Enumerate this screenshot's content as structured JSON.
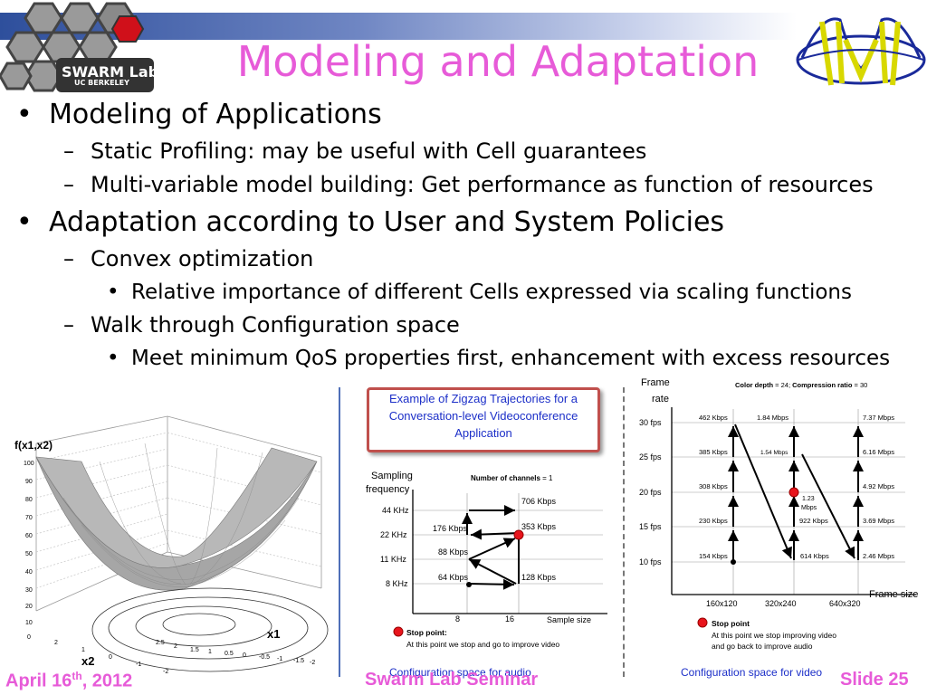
{
  "slide": {
    "title": "Modeling and Adaptation",
    "logo": {
      "line1": "SWARM Lab",
      "line2": "UC BERKELEY"
    },
    "bullets": [
      {
        "level": 1,
        "marker": "•",
        "text": "Modeling of Applications"
      },
      {
        "level": 2,
        "marker": "–",
        "text": "Static Profiling: may be useful with Cell guarantees"
      },
      {
        "level": 2,
        "marker": "–",
        "text": "Multi-variable model building: Get performance as function of resources"
      },
      {
        "level": 1,
        "marker": "•",
        "text": "Adaptation according to User and System Policies"
      },
      {
        "level": 2,
        "marker": "–",
        "text": "Convex optimization"
      },
      {
        "level": 3,
        "marker": "•",
        "text": "Relative importance of different Cells expressed via scaling functions"
      },
      {
        "level": 2,
        "marker": "–",
        "text": "Walk through Configuration space"
      },
      {
        "level": 3,
        "marker": "•",
        "text": "Meet minimum QoS properties first, enhancement with excess resources"
      }
    ],
    "footer": {
      "date": "April 16",
      "date_sup": "th",
      "date_year": ", 2012",
      "center": "Swarm Lab Seminar",
      "right": "Slide 25"
    }
  },
  "surface_plot": {
    "zlabel": "f(x1,x2)",
    "z_ticks": [
      "100",
      "90",
      "80",
      "70",
      "60",
      "50",
      "40",
      "30",
      "20",
      "10",
      "0"
    ],
    "x2_label": "x2",
    "x1_label": "x1",
    "x2_ticks": [
      "2",
      "1",
      "0",
      "-1",
      "-2"
    ],
    "x1_ticks": [
      "2.5",
      "2",
      "1.5",
      "1",
      "0.5",
      "0",
      "-0.5",
      "-1",
      "-1.5",
      "-2"
    ]
  },
  "callout": "Example of Zigzag Trajectories for a Conversation-level Videoconference Application",
  "audio_chart": {
    "ylabel": "Sampling frequency",
    "xlabel": "Sample size",
    "header_bold": "Number of channels",
    "header_rest": " = 1",
    "y_ticks": [
      "44 KHz",
      "22 KHz",
      "11 KHz",
      "8 KHz"
    ],
    "x_ticks": [
      "8",
      "16"
    ],
    "point_labels": [
      "706 Kbps",
      "176 Kbps",
      "353 Kbps",
      "88 Kbps",
      "64 Kbps",
      "128 Kbps"
    ],
    "stop_title": "Stop point:",
    "stop_text": "At this point we stop and go to improve video",
    "caption": "Configuration space for audio"
  },
  "video_chart": {
    "ylabel": "Frame rate",
    "xlabel": "Frame size",
    "header_b1": "Color depth",
    "header_r1": " = 24;  ",
    "header_b2": "Compression ratio",
    "header_r2": " = 30",
    "y_ticks": [
      "30 fps",
      "25 fps",
      "20 fps",
      "15 fps",
      "10 fps"
    ],
    "x_ticks": [
      "160x120",
      "320x240",
      "640x320"
    ],
    "col1_labels": [
      "462 Kbps",
      "385 Kbps",
      "308 Kbps",
      "230 Kbps",
      "154 Kbps"
    ],
    "col2_labels": [
      "1.84 Mbps",
      "1.54 Mbps",
      "1.23 Mbps",
      "922 Kbps",
      "614 Kbps"
    ],
    "col3_labels": [
      "7.37 Mbps",
      "6.16 Mbps",
      "4.92 Mbps",
      "3.69 Mbps",
      "2.46 Mbps"
    ],
    "stop_title": "Stop point",
    "stop_text1": "At this point we stop improving video",
    "stop_text2": "and go back to improve audio",
    "caption": "Configuration space for video"
  },
  "colors": {
    "title": "#e75bd8",
    "accent_blue": "#1c2fc8",
    "stop_point": "#e8141c",
    "callout_border": "#c0504d"
  }
}
